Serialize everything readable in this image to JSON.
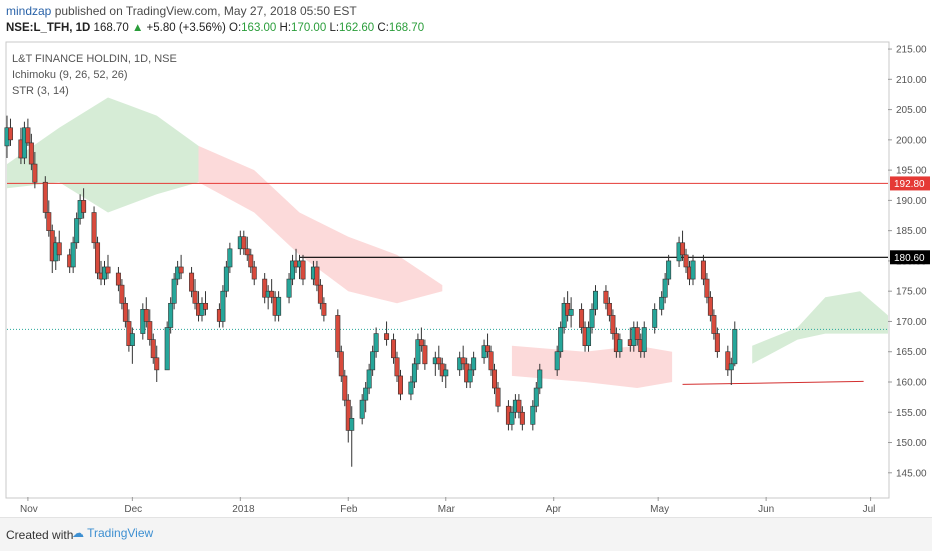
{
  "header": {
    "author": "mindzap",
    "published": "published on TradingView.com, May 27, 2018 05:50 EST",
    "symbol": "NSE:L_TFH, 1D",
    "last": "168.70",
    "change": "+5.80 (+3.56%)",
    "o_label": "O:",
    "o_value": "163.00",
    "h_label": "H:",
    "h_value": "170.00",
    "l_label": "L:",
    "l_value": "162.60",
    "c_label": "C:",
    "c_value": "168.70"
  },
  "legend": [
    "L&T FINANCE HOLDIN, 1D, NSE",
    "Ichimoku (9, 26, 52, 26)",
    "STR (3, 14)"
  ],
  "footer": {
    "created_with": "Created with",
    "brand": "TradingView"
  },
  "colors": {
    "up": "#26a69a",
    "down": "#d84a3c",
    "cloud_green": "#cfe9cf",
    "cloud_red": "#fbd3d3",
    "resistance": "#e53935",
    "level": "#000000"
  },
  "chart_data": {
    "type": "candlestick",
    "y_range": [
      141,
      216
    ],
    "y_ticks": [
      "215.00",
      "210.00",
      "205.00",
      "200.00",
      "195.00",
      "190.00",
      "185.00",
      "180.00",
      "175.00",
      "170.00",
      "165.00",
      "160.00",
      "155.00",
      "150.00",
      "145.00"
    ],
    "x_ticks": [
      "Nov",
      "Dec",
      "2018",
      "Feb",
      "Mar",
      "Apr",
      "May",
      "Jun",
      "Jul"
    ],
    "date_range": [
      "2017-10-26",
      "2018-07-06"
    ],
    "x_tick_dates": [
      "2017-11-01",
      "2017-12-01",
      "2018-01-01",
      "2018-02-01",
      "2018-03-01",
      "2018-04-01",
      "2018-05-01",
      "2018-06-01",
      "2018-07-01"
    ],
    "price_labels": [
      {
        "value": 192.8,
        "text": "192.80",
        "color": "#e53935"
      },
      {
        "value": 180.6,
        "text": "180.60",
        "color": "#000000"
      }
    ],
    "current_price": 168.7,
    "levels": [
      {
        "value": 192.8,
        "start": "2017-10-26",
        "end": "2018-07-06",
        "color": "#e53935"
      },
      {
        "value": 180.6,
        "start": "2018-01-18",
        "end": "2018-07-06",
        "color": "#000000"
      },
      {
        "value_start": 159.6,
        "value_end": 160.1,
        "start": "2018-05-08",
        "end": "2018-06-29",
        "color": "#d32f2f"
      }
    ],
    "cloud": [
      {
        "color": "green",
        "points": [
          [
            "2017-10-26",
            196
          ],
          [
            "2017-11-10",
            202
          ],
          [
            "2017-11-24",
            207
          ],
          [
            "2017-12-08",
            204
          ],
          [
            "2017-12-20",
            199
          ],
          [
            "2017-12-20",
            193
          ],
          [
            "2017-12-08",
            191
          ],
          [
            "2017-11-24",
            188
          ],
          [
            "2017-11-10",
            193
          ],
          [
            "2017-10-26",
            192
          ]
        ]
      },
      {
        "color": "red",
        "points": [
          [
            "2017-12-20",
            199
          ],
          [
            "2018-01-05",
            195
          ],
          [
            "2018-01-18",
            188
          ],
          [
            "2018-02-01",
            184
          ],
          [
            "2018-02-15",
            181
          ],
          [
            "2018-02-28",
            176
          ],
          [
            "2018-02-28",
            175
          ],
          [
            "2018-02-15",
            173
          ],
          [
            "2018-02-01",
            175
          ],
          [
            "2018-01-18",
            181
          ],
          [
            "2018-01-05",
            188
          ],
          [
            "2017-12-20",
            193
          ]
        ]
      },
      {
        "color": "red",
        "points": [
          [
            "2018-03-20",
            166
          ],
          [
            "2018-04-10",
            165
          ],
          [
            "2018-04-25",
            166
          ],
          [
            "2018-05-05",
            165
          ],
          [
            "2018-05-05",
            160
          ],
          [
            "2018-04-25",
            159
          ],
          [
            "2018-04-10",
            160
          ],
          [
            "2018-03-20",
            161
          ]
        ]
      },
      {
        "color": "green",
        "points": [
          [
            "2018-05-28",
            166
          ],
          [
            "2018-06-10",
            169
          ],
          [
            "2018-06-18",
            174
          ],
          [
            "2018-06-28",
            175
          ],
          [
            "2018-07-06",
            171
          ],
          [
            "2018-07-06",
            168
          ],
          [
            "2018-06-28",
            168
          ],
          [
            "2018-06-18",
            168
          ],
          [
            "2018-06-10",
            167
          ],
          [
            "2018-05-28",
            163
          ]
        ]
      }
    ],
    "candles": [
      [
        "2017-10-26",
        199.0,
        204.0,
        197.0,
        202.0
      ],
      [
        "2017-10-27",
        202.0,
        203.5,
        199.0,
        200.0
      ],
      [
        "2017-10-30",
        200.0,
        202.0,
        196.0,
        197.0
      ],
      [
        "2017-10-31",
        197.0,
        203.0,
        196.0,
        202.0
      ],
      [
        "2017-11-01",
        202.0,
        203.5,
        199.0,
        199.5
      ],
      [
        "2017-11-02",
        199.5,
        201.0,
        195.0,
        196.0
      ],
      [
        "2017-11-03",
        196.0,
        198.0,
        192.0,
        193.0
      ],
      [
        "2017-11-06",
        193.0,
        194.0,
        187.0,
        188.0
      ],
      [
        "2017-11-07",
        188.0,
        190.0,
        184.0,
        185.0
      ],
      [
        "2017-11-08",
        185.0,
        186.0,
        178.0,
        180.0
      ],
      [
        "2017-11-09",
        180.0,
        184.0,
        178.5,
        183.0
      ],
      [
        "2017-11-10",
        183.0,
        185.0,
        180.0,
        181.0
      ],
      [
        "2017-11-13",
        181.0,
        182.0,
        178.0,
        179.0
      ],
      [
        "2017-11-14",
        179.0,
        184.0,
        178.0,
        183.0
      ],
      [
        "2017-11-15",
        183.0,
        188.0,
        182.0,
        187.0
      ],
      [
        "2017-11-16",
        187.0,
        191.0,
        186.0,
        190.0
      ],
      [
        "2017-11-17",
        190.0,
        192.0,
        187.0,
        188.0
      ],
      [
        "2017-11-20",
        188.0,
        189.0,
        182.0,
        183.0
      ],
      [
        "2017-11-21",
        183.0,
        184.0,
        177.0,
        178.0
      ],
      [
        "2017-11-22",
        178.0,
        180.0,
        176.0,
        177.0
      ],
      [
        "2017-11-23",
        177.0,
        180.0,
        176.0,
        179.0
      ],
      [
        "2017-11-24",
        179.0,
        181.0,
        177.0,
        178.0
      ],
      [
        "2017-11-27",
        178.0,
        179.0,
        175.0,
        176.0
      ],
      [
        "2017-11-28",
        176.0,
        177.0,
        172.0,
        173.0
      ],
      [
        "2017-11-29",
        173.0,
        174.0,
        169.0,
        170.0
      ],
      [
        "2017-11-30",
        170.0,
        172.0,
        165.0,
        166.0
      ],
      [
        "2017-12-01",
        166.0,
        169.0,
        163.0,
        168.0
      ],
      [
        "2017-12-04",
        168.0,
        173.0,
        167.0,
        172.0
      ],
      [
        "2017-12-05",
        172.0,
        174.0,
        169.0,
        170.0
      ],
      [
        "2017-12-06",
        170.0,
        172.0,
        166.0,
        167.0
      ],
      [
        "2017-12-07",
        167.0,
        168.0,
        163.0,
        164.0
      ],
      [
        "2017-12-08",
        164.0,
        166.0,
        160.0,
        162.0
      ],
      [
        "2017-12-11",
        162.0,
        170.0,
        162.0,
        169.0
      ],
      [
        "2017-12-12",
        169.0,
        174.0,
        168.0,
        173.0
      ],
      [
        "2017-12-13",
        173.0,
        178.0,
        172.0,
        177.0
      ],
      [
        "2017-12-14",
        177.0,
        180.0,
        176.0,
        179.0
      ],
      [
        "2017-12-15",
        179.0,
        181.0,
        177.0,
        178.0
      ],
      [
        "2017-12-18",
        178.0,
        179.0,
        174.0,
        175.0
      ],
      [
        "2017-12-19",
        175.0,
        177.0,
        172.0,
        173.0
      ],
      [
        "2017-12-20",
        173.0,
        175.0,
        170.0,
        171.0
      ],
      [
        "2017-12-21",
        171.0,
        174.0,
        170.0,
        173.0
      ],
      [
        "2017-12-22",
        173.0,
        175.0,
        171.0,
        172.0
      ],
      [
        "2017-12-26",
        172.0,
        173.0,
        169.0,
        170.0
      ],
      [
        "2017-12-27",
        170.0,
        176.0,
        169.0,
        175.0
      ],
      [
        "2017-12-28",
        175.0,
        180.0,
        174.0,
        179.0
      ],
      [
        "2017-12-29",
        179.0,
        183.0,
        178.0,
        182.0
      ],
      [
        "2018-01-01",
        182.0,
        185.0,
        181.0,
        184.0
      ],
      [
        "2018-01-02",
        184.0,
        185.0,
        181.0,
        182.0
      ],
      [
        "2018-01-03",
        182.0,
        184.0,
        180.0,
        181.0
      ],
      [
        "2018-01-04",
        181.0,
        182.0,
        178.0,
        179.0
      ],
      [
        "2018-01-05",
        179.0,
        180.0,
        176.0,
        177.0
      ],
      [
        "2018-01-08",
        177.0,
        178.0,
        173.0,
        174.0
      ],
      [
        "2018-01-09",
        174.0,
        176.0,
        172.0,
        175.0
      ],
      [
        "2018-01-10",
        175.0,
        177.0,
        173.0,
        174.0
      ],
      [
        "2018-01-11",
        174.0,
        175.0,
        170.0,
        171.0
      ],
      [
        "2018-01-12",
        171.0,
        175.0,
        170.0,
        174.0
      ],
      [
        "2018-01-15",
        174.0,
        178.0,
        173.0,
        177.0
      ],
      [
        "2018-01-16",
        177.0,
        181.0,
        176.0,
        180.0
      ],
      [
        "2018-01-17",
        180.0,
        182.0,
        178.0,
        179.0
      ],
      [
        "2018-01-18",
        179.0,
        181.0,
        177.0,
        180.0
      ],
      [
        "2018-01-19",
        180.0,
        181.0,
        176.0,
        177.0
      ],
      [
        "2018-01-22",
        177.0,
        180.0,
        176.0,
        179.0
      ],
      [
        "2018-01-23",
        179.0,
        180.0,
        175.0,
        176.0
      ],
      [
        "2018-01-24",
        176.0,
        177.0,
        172.0,
        173.0
      ],
      [
        "2018-01-25",
        173.0,
        174.0,
        170.0,
        171.0
      ],
      [
        "2018-01-29",
        171.0,
        172.0,
        164.0,
        165.0
      ],
      [
        "2018-01-30",
        165.0,
        166.0,
        160.0,
        161.0
      ],
      [
        "2018-01-31",
        161.0,
        162.0,
        156.0,
        157.0
      ],
      [
        "2018-02-01",
        157.0,
        158.0,
        150.0,
        152.0
      ],
      [
        "2018-02-02",
        152.0,
        156.0,
        146.0,
        154.0
      ],
      [
        "2018-02-05",
        154.0,
        158.0,
        153.0,
        157.0
      ],
      [
        "2018-02-06",
        157.0,
        160.0,
        155.0,
        159.0
      ],
      [
        "2018-02-07",
        159.0,
        163.0,
        158.0,
        162.0
      ],
      [
        "2018-02-08",
        162.0,
        166.0,
        161.0,
        165.0
      ],
      [
        "2018-02-09",
        165.0,
        169.0,
        164.0,
        168.0
      ],
      [
        "2018-02-12",
        168.0,
        170.0,
        166.0,
        167.0
      ],
      [
        "2018-02-14",
        167.0,
        168.0,
        163.0,
        164.0
      ],
      [
        "2018-02-15",
        164.0,
        165.0,
        160.0,
        161.0
      ],
      [
        "2018-02-16",
        161.0,
        162.0,
        157.0,
        158.0
      ],
      [
        "2018-02-19",
        158.0,
        161.0,
        157.0,
        160.0
      ],
      [
        "2018-02-20",
        160.0,
        164.0,
        159.0,
        163.0
      ],
      [
        "2018-02-21",
        163.0,
        168.0,
        162.0,
        167.0
      ],
      [
        "2018-02-22",
        167.0,
        169.0,
        165.0,
        166.0
      ],
      [
        "2018-02-23",
        166.0,
        167.0,
        162.0,
        163.0
      ],
      [
        "2018-02-26",
        163.0,
        165.0,
        161.0,
        164.0
      ],
      [
        "2018-02-27",
        164.0,
        166.0,
        162.0,
        163.0
      ],
      [
        "2018-02-28",
        163.0,
        164.0,
        160.0,
        161.0
      ],
      [
        "2018-03-01",
        161.0,
        163.0,
        159.0,
        162.0
      ],
      [
        "2018-03-05",
        162.0,
        165.0,
        161.0,
        164.0
      ],
      [
        "2018-03-06",
        164.0,
        166.0,
        162.0,
        163.0
      ],
      [
        "2018-03-07",
        163.0,
        164.0,
        159.0,
        160.0
      ],
      [
        "2018-03-08",
        160.0,
        163.0,
        159.0,
        162.0
      ],
      [
        "2018-03-09",
        162.0,
        165.0,
        161.0,
        164.0
      ],
      [
        "2018-03-12",
        164.0,
        167.0,
        163.0,
        166.0
      ],
      [
        "2018-03-13",
        166.0,
        168.0,
        164.0,
        165.0
      ],
      [
        "2018-03-14",
        165.0,
        166.0,
        161.0,
        162.0
      ],
      [
        "2018-03-15",
        162.0,
        163.0,
        158.0,
        159.0
      ],
      [
        "2018-03-16",
        159.0,
        160.0,
        155.0,
        156.0
      ],
      [
        "2018-03-19",
        156.0,
        157.0,
        152.0,
        153.0
      ],
      [
        "2018-03-20",
        153.0,
        156.0,
        152.0,
        155.0
      ],
      [
        "2018-03-21",
        155.0,
        158.0,
        154.0,
        157.0
      ],
      [
        "2018-03-22",
        157.0,
        158.0,
        154.0,
        155.0
      ],
      [
        "2018-03-23",
        155.0,
        156.0,
        152.0,
        153.0
      ],
      [
        "2018-03-26",
        153.0,
        157.0,
        152.0,
        156.0
      ],
      [
        "2018-03-27",
        156.0,
        160.0,
        155.0,
        159.0
      ],
      [
        "2018-03-28",
        159.0,
        163.0,
        158.0,
        162.0
      ],
      [
        "2018-04-02",
        162.0,
        166.0,
        161.0,
        165.0
      ],
      [
        "2018-04-03",
        165.0,
        170.0,
        164.0,
        169.0
      ],
      [
        "2018-04-04",
        169.0,
        174.0,
        168.0,
        173.0
      ],
      [
        "2018-04-05",
        173.0,
        175.0,
        170.0,
        171.0
      ],
      [
        "2018-04-06",
        171.0,
        174.0,
        169.0,
        172.0
      ],
      [
        "2018-04-09",
        172.0,
        173.0,
        168.0,
        169.0
      ],
      [
        "2018-04-10",
        169.0,
        170.0,
        165.0,
        166.0
      ],
      [
        "2018-04-11",
        166.0,
        170.0,
        165.0,
        169.0
      ],
      [
        "2018-04-12",
        169.0,
        173.0,
        168.0,
        172.0
      ],
      [
        "2018-04-13",
        172.0,
        176.0,
        171.0,
        175.0
      ],
      [
        "2018-04-16",
        175.0,
        176.0,
        172.0,
        173.0
      ],
      [
        "2018-04-17",
        173.0,
        174.0,
        170.0,
        171.0
      ],
      [
        "2018-04-18",
        171.0,
        172.0,
        167.0,
        168.0
      ],
      [
        "2018-04-19",
        168.0,
        169.0,
        164.0,
        165.0
      ],
      [
        "2018-04-20",
        165.0,
        168.0,
        164.0,
        167.0
      ],
      [
        "2018-04-23",
        167.0,
        169.0,
        165.0,
        166.0
      ],
      [
        "2018-04-24",
        166.0,
        170.0,
        165.0,
        169.0
      ],
      [
        "2018-04-25",
        169.0,
        170.0,
        166.0,
        167.0
      ],
      [
        "2018-04-26",
        167.0,
        168.0,
        164.0,
        165.0
      ],
      [
        "2018-04-27",
        165.0,
        170.0,
        164.0,
        169.0
      ],
      [
        "2018-04-30",
        169.0,
        173.0,
        168.0,
        172.0
      ],
      [
        "2018-05-02",
        172.0,
        175.0,
        171.0,
        174.0
      ],
      [
        "2018-05-03",
        174.0,
        178.0,
        173.0,
        177.0
      ],
      [
        "2018-05-04",
        177.0,
        181.0,
        176.0,
        180.0
      ],
      [
        "2018-05-07",
        180.0,
        184.0,
        179.0,
        183.0
      ],
      [
        "2018-05-08",
        183.0,
        185.0,
        180.0,
        181.0
      ],
      [
        "2018-05-09",
        181.0,
        182.0,
        178.0,
        179.0
      ],
      [
        "2018-05-10",
        179.0,
        180.0,
        176.0,
        177.0
      ],
      [
        "2018-05-11",
        177.0,
        181.0,
        176.0,
        180.0
      ],
      [
        "2018-05-14",
        180.0,
        181.0,
        176.0,
        177.0
      ],
      [
        "2018-05-15",
        177.0,
        178.0,
        173.0,
        174.0
      ],
      [
        "2018-05-16",
        174.0,
        175.0,
        170.0,
        171.0
      ],
      [
        "2018-05-17",
        171.0,
        172.0,
        167.0,
        168.0
      ],
      [
        "2018-05-18",
        168.0,
        169.0,
        164.0,
        165.0
      ],
      [
        "2018-05-21",
        165.0,
        166.0,
        161.0,
        162.0
      ],
      [
        "2018-05-22",
        162.0,
        164.0,
        159.5,
        163.0
      ],
      [
        "2018-05-23",
        163.0,
        170.0,
        162.6,
        168.7
      ]
    ]
  }
}
